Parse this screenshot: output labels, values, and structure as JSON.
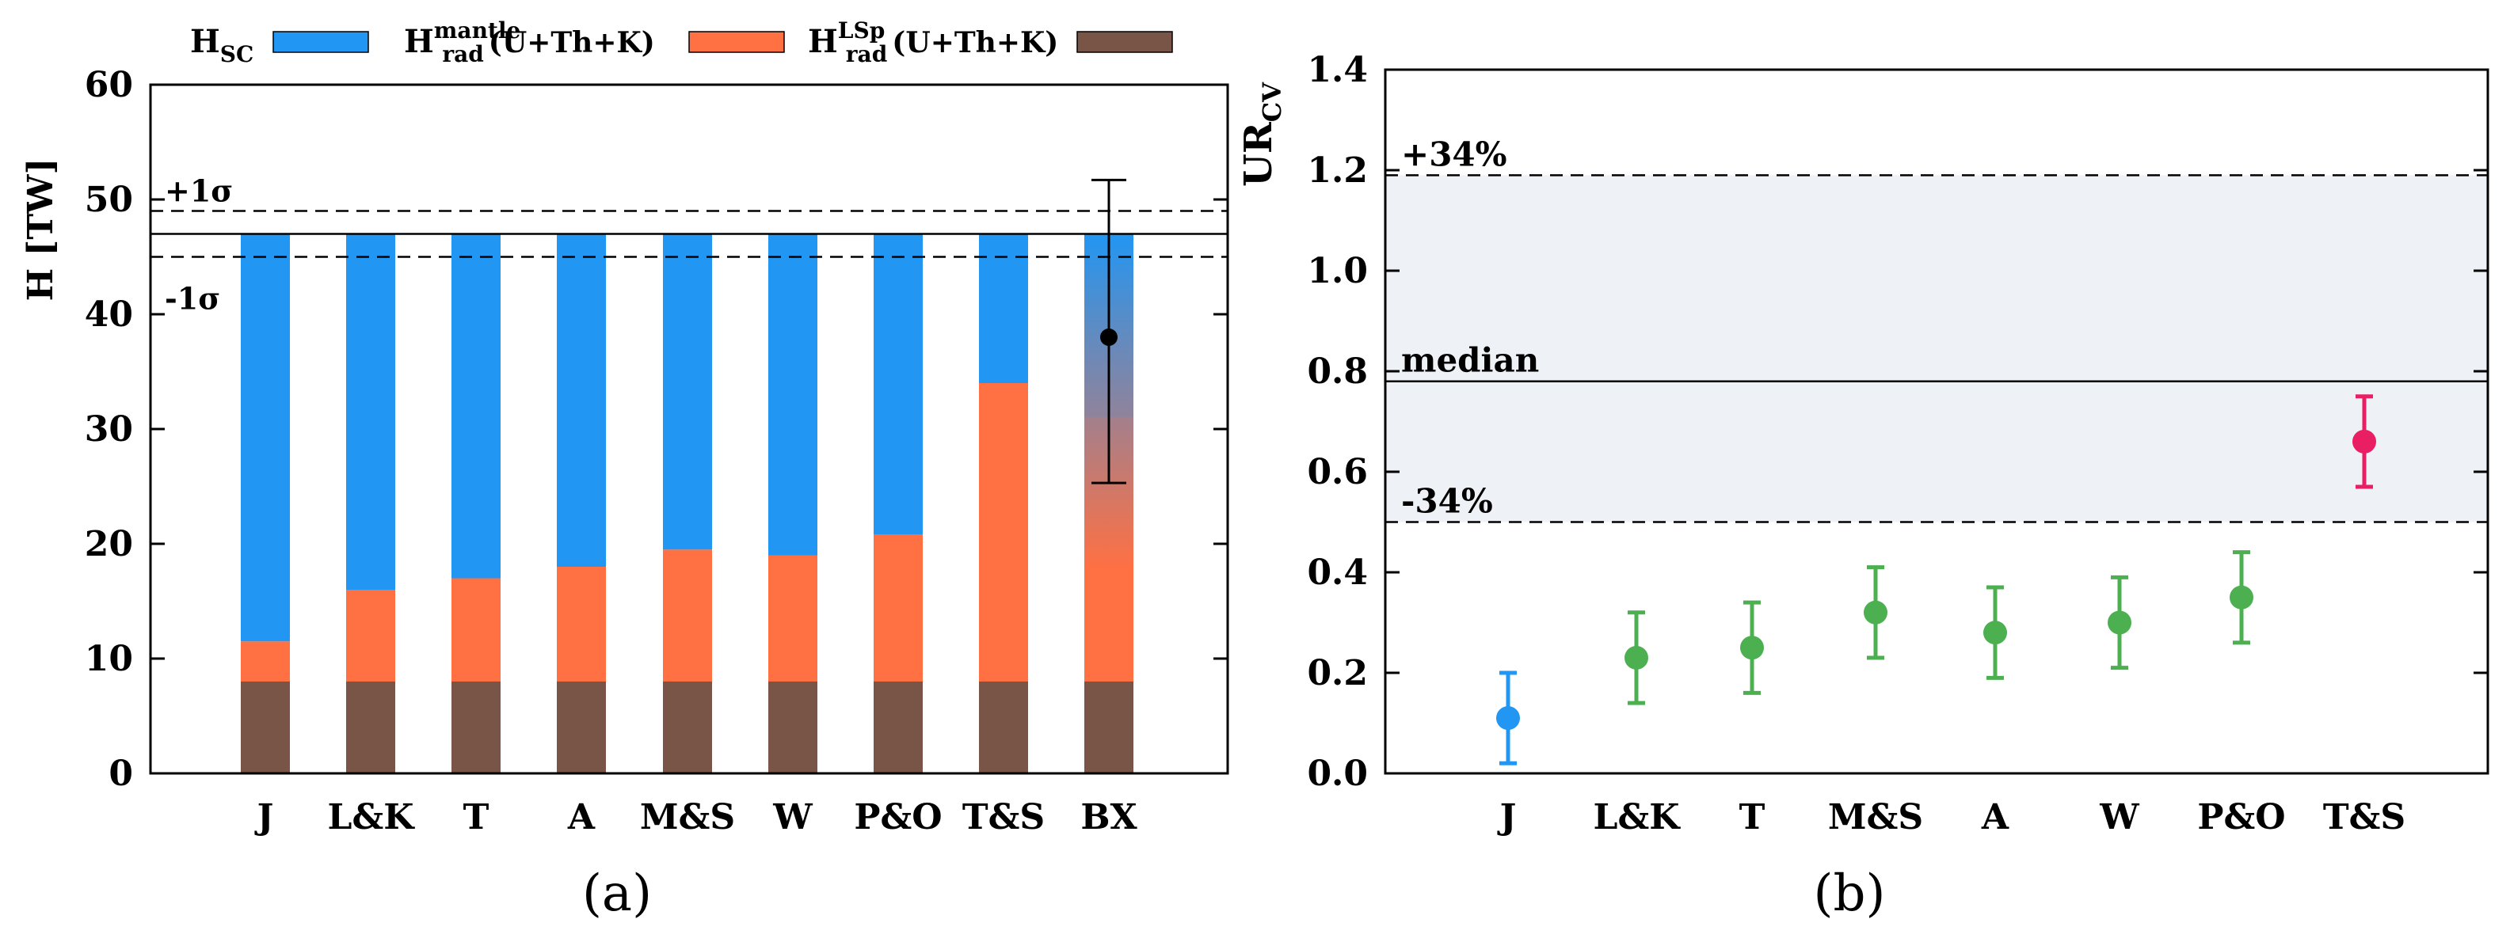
{
  "chart_data": [
    {
      "panel": "(a)",
      "type": "bar",
      "stacked": true,
      "title": "",
      "ylabel": "H [TW]",
      "ylim": [
        0,
        60
      ],
      "yticks": [
        0,
        10,
        20,
        30,
        40,
        50,
        60
      ],
      "categories": [
        "J",
        "L&K",
        "T",
        "A",
        "M&S",
        "W",
        "P&O",
        "T&S",
        "BX"
      ],
      "total": 47,
      "series": [
        {
          "name": "H_rad^LSp(U+Th+K)",
          "color": "#795548",
          "values": [
            8,
            8,
            8,
            8,
            8,
            8,
            8,
            8,
            8
          ]
        },
        {
          "name": "H_rad^mantle(U+Th+K)",
          "color": "#ff7043",
          "values": [
            3.5,
            8,
            9,
            10,
            11.5,
            11,
            12.8,
            26,
            23
          ]
        },
        {
          "name": "H_SC",
          "color": "#2196f3",
          "values": [
            35.5,
            31,
            30,
            29,
            27.5,
            28,
            26.2,
            13,
            16
          ]
        }
      ],
      "reference_lines": [
        {
          "label": "+1σ",
          "value": 49,
          "style": "dashed"
        },
        {
          "label": "",
          "value": 47,
          "style": "solid"
        },
        {
          "label": "-1σ",
          "value": 45,
          "style": "dashed"
        }
      ],
      "point": {
        "category": "BX",
        "value": 38,
        "err_low": 25.3,
        "err_high": 51.7
      },
      "legend": [
        {
          "main": "H",
          "sub": "SC",
          "sup": "",
          "suffix": "",
          "color": "#2196f3"
        },
        {
          "main": "H",
          "sub": "rad",
          "sup": "mantle",
          "suffix": "(U+Th+K)",
          "color": "#ff7043"
        },
        {
          "main": "H",
          "sub": "rad",
          "sup": "LSp",
          "suffix": "(U+Th+K)",
          "color": "#795548"
        }
      ]
    },
    {
      "panel": "(b)",
      "type": "scatter",
      "title": "",
      "ylabel_main": "UR",
      "ylabel_sub": "CV",
      "ylim": [
        0,
        1.4
      ],
      "yticks": [
        "0.0",
        "0.2",
        "0.4",
        "0.6",
        "0.8",
        "1.0",
        "1.2",
        "1.4"
      ],
      "categories": [
        "J",
        "L&K",
        "T",
        "M&S",
        "A",
        "W",
        "P&O",
        "T&S"
      ],
      "points": [
        {
          "category": "J",
          "value": 0.11,
          "low": 0.02,
          "high": 0.2,
          "color": "#2196f3"
        },
        {
          "category": "L&K",
          "value": 0.23,
          "low": 0.14,
          "high": 0.32,
          "color": "#4caf50"
        },
        {
          "category": "T",
          "value": 0.25,
          "low": 0.16,
          "high": 0.34,
          "color": "#4caf50"
        },
        {
          "category": "M&S",
          "value": 0.32,
          "low": 0.23,
          "high": 0.41,
          "color": "#4caf50"
        },
        {
          "category": "A",
          "value": 0.28,
          "low": 0.19,
          "high": 0.37,
          "color": "#4caf50"
        },
        {
          "category": "W",
          "value": 0.3,
          "low": 0.21,
          "high": 0.39,
          "color": "#4caf50"
        },
        {
          "category": "P&O",
          "value": 0.35,
          "low": 0.26,
          "high": 0.44,
          "color": "#4caf50"
        },
        {
          "category": "T&S",
          "value": 0.66,
          "low": 0.57,
          "high": 0.75,
          "color": "#e91e63"
        }
      ],
      "band": {
        "low": 0.5,
        "high": 1.19,
        "color": "#eef2f6"
      },
      "reference_lines": [
        {
          "label": "+34%",
          "value": 1.19,
          "style": "dashed"
        },
        {
          "label": "median",
          "value": 0.78,
          "style": "solid"
        },
        {
          "label": "-34%",
          "value": 0.5,
          "style": "dashed"
        }
      ]
    }
  ]
}
